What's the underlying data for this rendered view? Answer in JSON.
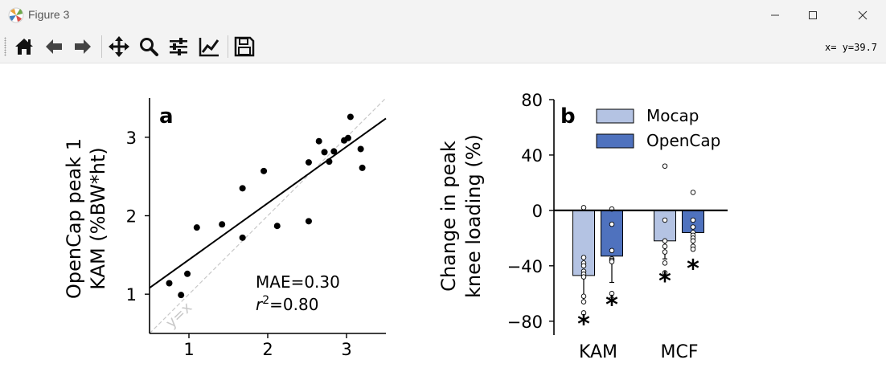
{
  "window": {
    "title": "Figure 3"
  },
  "toolbar": {
    "buttons": [
      {
        "name": "home-button",
        "icon": "home-icon"
      },
      {
        "name": "back-button",
        "icon": "arrow-left-icon"
      },
      {
        "name": "forward-button",
        "icon": "arrow-right-icon"
      },
      {
        "name": "pan-button",
        "icon": "move-icon"
      },
      {
        "name": "zoom-button",
        "icon": "magnifier-icon"
      },
      {
        "name": "subplots-button",
        "icon": "sliders-icon"
      },
      {
        "name": "edit-axes-button",
        "icon": "line-chart-icon"
      },
      {
        "name": "save-button",
        "icon": "floppy-disk-icon"
      }
    ],
    "coords": "x= y=39.7"
  },
  "chart_data": [
    {
      "type": "scatter",
      "panel_label": "a",
      "xlabel": "",
      "ylabel_line1": "OpenCap peak 1",
      "ylabel_line2": "KAM (%BW*ht)",
      "xlim": [
        0.5,
        3.5
      ],
      "ylim": [
        0.5,
        3.5
      ],
      "xticks": [
        1,
        2,
        3
      ],
      "yticks": [
        1,
        2,
        3
      ],
      "points": [
        [
          0.75,
          1.14
        ],
        [
          0.9,
          0.99
        ],
        [
          0.98,
          1.26
        ],
        [
          1.1,
          1.85
        ],
        [
          1.42,
          1.89
        ],
        [
          1.68,
          2.35
        ],
        [
          1.68,
          1.72
        ],
        [
          1.95,
          2.57
        ],
        [
          2.12,
          1.87
        ],
        [
          2.52,
          1.93
        ],
        [
          2.52,
          2.68
        ],
        [
          2.65,
          2.95
        ],
        [
          2.72,
          2.81
        ],
        [
          2.78,
          2.69
        ],
        [
          2.84,
          2.82
        ],
        [
          2.97,
          2.96
        ],
        [
          3.02,
          2.99
        ],
        [
          3.05,
          3.26
        ],
        [
          3.18,
          2.85
        ],
        [
          3.2,
          2.61
        ]
      ],
      "fit_line": [
        [
          0.5,
          1.08
        ],
        [
          3.5,
          3.24
        ]
      ],
      "identity_label": "y=x",
      "annotation_mae": "MAE=0.30",
      "annotation_r2_symbol": "r",
      "annotation_r2_value": "=0.80"
    },
    {
      "type": "bar",
      "panel_label": "b",
      "ylabel_line1": "Change in peak",
      "ylabel_line2": "knee loading (%)",
      "ylim": [
        -90,
        80
      ],
      "yticks": [
        -80,
        -40,
        0,
        40,
        80
      ],
      "categories": [
        "KAM",
        "MCF"
      ],
      "legend_placement": "top-right",
      "series": [
        {
          "name": "Mocap",
          "color": "#b4c3e3",
          "values": [
            -47,
            -22
          ],
          "error": [
            [
              -66,
              -47
            ],
            [
              -35,
              -22
            ]
          ],
          "points": [
            [
              2,
              -34,
              -38,
              -40,
              -44,
              -46,
              -48,
              -62,
              -66,
              -74
            ],
            [
              32,
              -7,
              -22,
              -26,
              -30,
              -38,
              -45
            ]
          ],
          "significance": [
            "*",
            "*"
          ]
        },
        {
          "name": "OpenCap",
          "color": "#4f72be",
          "values": [
            -33,
            -16
          ],
          "error": [
            [
              -52,
              -33
            ],
            [
              -26,
              -16
            ]
          ],
          "points": [
            [
              1,
              -10,
              -29,
              -35,
              -36,
              -37,
              -60,
              -64
            ],
            [
              13,
              -7,
              -12,
              -16,
              -18,
              -20,
              -22,
              -26,
              -28
            ]
          ],
          "significance": [
            "*",
            "*"
          ]
        }
      ]
    }
  ]
}
